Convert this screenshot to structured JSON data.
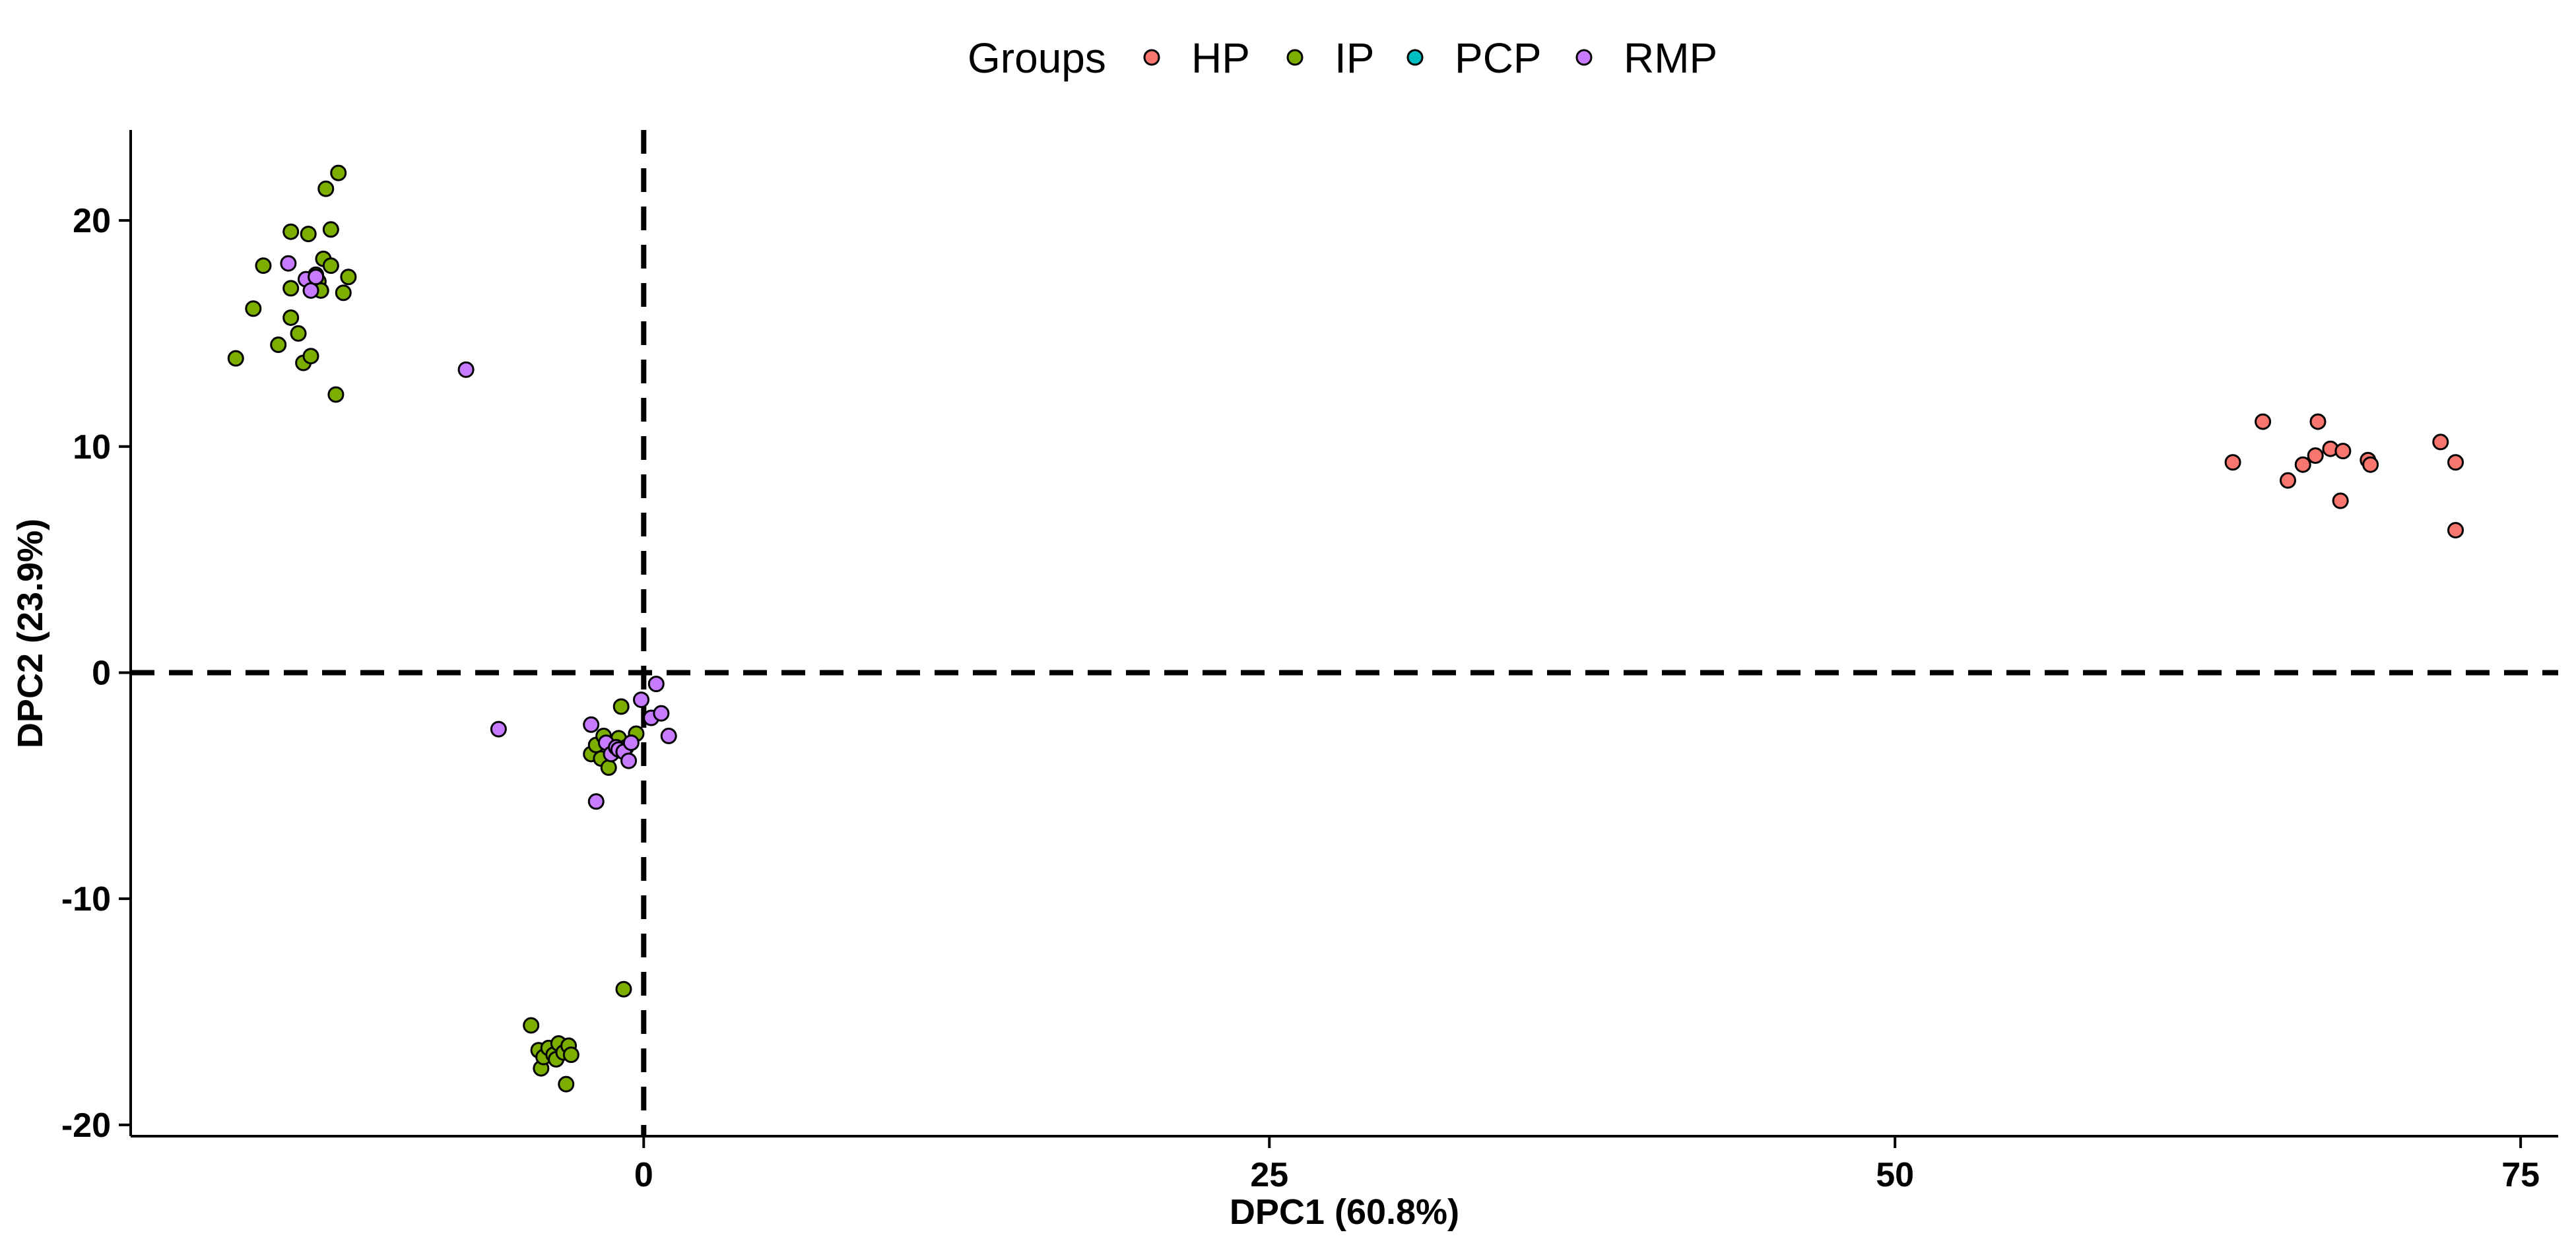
{
  "legend": {
    "title": "Groups",
    "placement": "top-center",
    "entries": [
      {
        "name": "HP",
        "color": "#F8766D"
      },
      {
        "name": "IP",
        "color": "#7CAE00"
      },
      {
        "name": "PCP",
        "color": "#00BFC4"
      },
      {
        "name": "RMP",
        "color": "#C77CFF"
      }
    ]
  },
  "chart_data": {
    "type": "scatter",
    "title": "",
    "xlabel": "DPC1 (60.8%)",
    "ylabel": "DPC2 (23.9%)",
    "xlim": [
      -20.5,
      76.5
    ],
    "ylim": [
      -20.5,
      24
    ],
    "xticks": [
      0,
      25,
      50,
      75
    ],
    "yticks": [
      -20,
      -10,
      0,
      10,
      20
    ],
    "reference_lines": {
      "x": 0,
      "y": 0,
      "style": "dashed"
    },
    "grid": false,
    "series": [
      {
        "name": "HP",
        "color": "#F8766D",
        "points": [
          [
            63.5,
            9.3
          ],
          [
            64.7,
            11.1
          ],
          [
            65.7,
            8.5
          ],
          [
            66.3,
            9.2
          ],
          [
            66.8,
            9.6
          ],
          [
            66.9,
            11.1
          ],
          [
            67.4,
            9.9
          ],
          [
            67.8,
            7.6
          ],
          [
            67.9,
            9.8
          ],
          [
            68.9,
            9.4
          ],
          [
            69.0,
            9.2
          ],
          [
            71.8,
            10.2
          ],
          [
            72.4,
            9.3
          ],
          [
            72.4,
            6.3
          ]
        ]
      },
      {
        "name": "IP",
        "color": "#7CAE00",
        "points": [
          [
            -16.3,
            13.9
          ],
          [
            -15.6,
            16.1
          ],
          [
            -15.2,
            18.0
          ],
          [
            -14.6,
            14.5
          ],
          [
            -14.1,
            15.7
          ],
          [
            -14.1,
            17.0
          ],
          [
            -13.8,
            15.0
          ],
          [
            -13.6,
            13.7
          ],
          [
            -13.3,
            14.0
          ],
          [
            -13.1,
            17.6
          ],
          [
            -13.0,
            17.3
          ],
          [
            -12.9,
            16.9
          ],
          [
            -12.8,
            18.3
          ],
          [
            -12.7,
            21.4
          ],
          [
            -12.5,
            19.6
          ],
          [
            -12.5,
            18.0
          ],
          [
            -12.3,
            12.3
          ],
          [
            -12.2,
            22.1
          ],
          [
            -12.0,
            16.8
          ],
          [
            -11.8,
            17.5
          ],
          [
            -13.4,
            19.4
          ],
          [
            -14.1,
            19.5
          ],
          [
            -4.5,
            -15.6
          ],
          [
            -4.2,
            -16.7
          ],
          [
            -4.1,
            -17.5
          ],
          [
            -4.0,
            -17.0
          ],
          [
            -3.8,
            -16.6
          ],
          [
            -3.6,
            -16.9
          ],
          [
            -3.5,
            -17.1
          ],
          [
            -3.4,
            -16.4
          ],
          [
            -3.2,
            -16.8
          ],
          [
            -3.1,
            -18.2
          ],
          [
            -3.0,
            -16.5
          ],
          [
            -2.9,
            -16.9
          ],
          [
            -0.8,
            -14.0
          ],
          [
            -2.1,
            -3.6
          ],
          [
            -1.9,
            -3.2
          ],
          [
            -1.7,
            -3.8
          ],
          [
            -1.6,
            -2.8
          ],
          [
            -1.4,
            -4.2
          ],
          [
            -1.2,
            -3.5
          ],
          [
            -1.0,
            -2.9
          ],
          [
            -0.9,
            -1.5
          ],
          [
            -0.7,
            -3.3
          ],
          [
            -0.3,
            -2.7
          ]
        ]
      },
      {
        "name": "PCP",
        "color": "#00BFC4",
        "points": []
      },
      {
        "name": "RMP",
        "color": "#C77CFF",
        "points": [
          [
            -14.2,
            18.1
          ],
          [
            -13.5,
            17.4
          ],
          [
            -13.3,
            16.9
          ],
          [
            -13.1,
            17.5
          ],
          [
            -7.1,
            13.4
          ],
          [
            -5.8,
            -2.5
          ],
          [
            -2.1,
            -2.3
          ],
          [
            -1.9,
            -5.7
          ],
          [
            -1.5,
            -3.1
          ],
          [
            -1.3,
            -3.6
          ],
          [
            -1.1,
            -3.3
          ],
          [
            -1.0,
            -3.4
          ],
          [
            -0.8,
            -3.5
          ],
          [
            -0.6,
            -3.9
          ],
          [
            -0.5,
            -3.1
          ],
          [
            -0.1,
            -1.2
          ],
          [
            0.3,
            -2.0
          ],
          [
            0.5,
            -0.5
          ],
          [
            0.7,
            -1.8
          ],
          [
            1.0,
            -2.8
          ]
        ]
      }
    ]
  }
}
